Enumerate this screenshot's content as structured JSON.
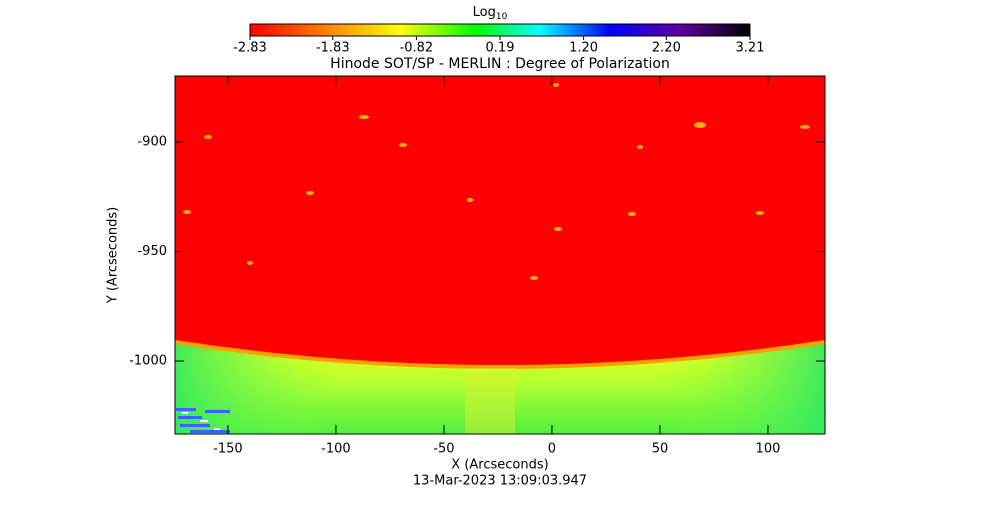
{
  "chart_data": {
    "type": "image",
    "title": "Hinode SOT/SP - MERLIN : Degree of Polarization",
    "x_label": "X (Arcseconds)",
    "y_label": "Y (Arcseconds)",
    "date": "13-Mar-2023 13:09:03.947",
    "xlim": [
      -174.5,
      126.4
    ],
    "ylim": [
      -1033.3,
      -869.9
    ],
    "xticks": [
      -150,
      -100,
      -50,
      0,
      50,
      100
    ],
    "yticks": [
      -1000,
      -950,
      -900
    ],
    "colorbar": {
      "label": "Log",
      "label_subscript": "10",
      "clim": [
        -2.83,
        3.21
      ],
      "ticks": [
        -2.83,
        -1.83,
        -0.82,
        0.19,
        {
          "value": 1.2,
          "label": "1.20"
        },
        {
          "value": 2.2,
          "label": "2.20"
        },
        3.21
      ]
    }
  }
}
